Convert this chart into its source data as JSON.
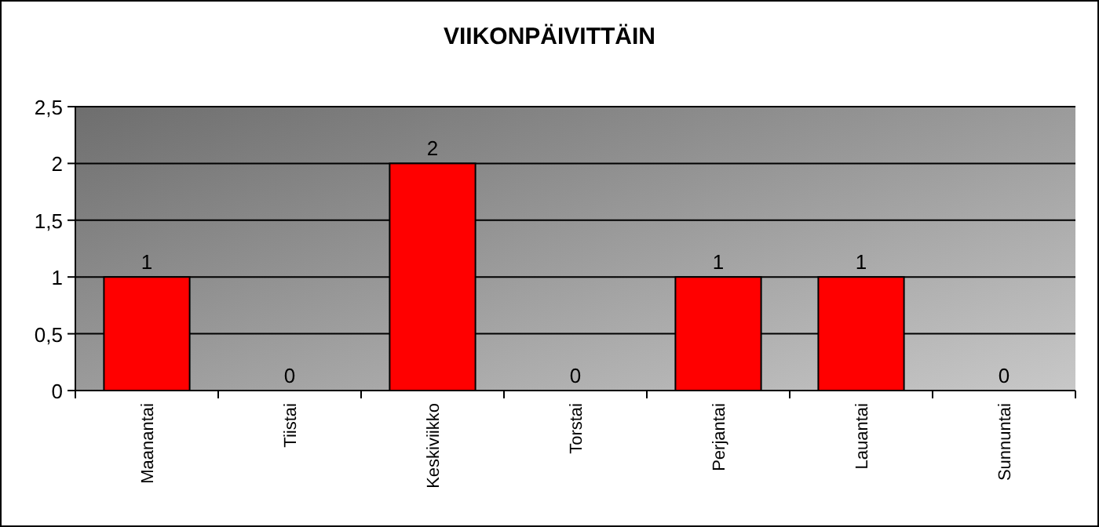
{
  "chart_data": {
    "type": "bar",
    "title": "VIIKONPÄIVITTÄIN",
    "categories": [
      "Maanantai",
      "Tiistai",
      "Keskiviikko",
      "Torstai",
      "Perjantai",
      "Lauantai",
      "Sunnuntai"
    ],
    "values": [
      1,
      0,
      2,
      0,
      1,
      1,
      0
    ],
    "color": "#ff0000",
    "ylim": [
      0,
      2.5
    ],
    "yticks": [
      0,
      {
        "value": 0.5,
        "label": "0,5"
      },
      1,
      {
        "value": 1.5,
        "label": "1,5"
      },
      2,
      {
        "value": 2.5,
        "label": "2,5"
      }
    ],
    "grid": "y",
    "data_labels": true
  }
}
